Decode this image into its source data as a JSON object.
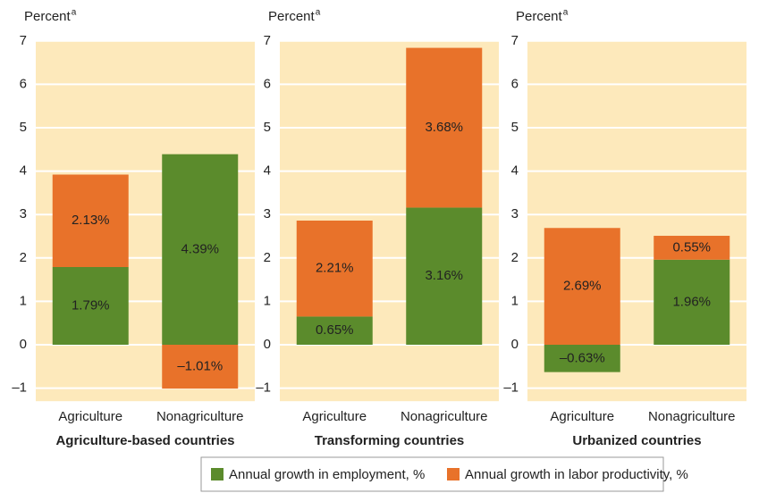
{
  "chart_data": [
    {
      "type": "bar",
      "stacked": true,
      "title": "Agriculture-based countries",
      "y_label": "Percent",
      "y_label_note": "a",
      "categories": [
        "Agriculture",
        "Nonagriculture"
      ],
      "series": [
        {
          "name": "Annual growth in employment, %",
          "color": "#5b8b2c",
          "values": [
            1.79,
            4.39
          ],
          "value_labels": [
            "1.79%",
            "4.39%"
          ]
        },
        {
          "name": "Annual growth in labor productivity, %",
          "color": "#e8722a",
          "values": [
            2.13,
            -1.01
          ],
          "value_labels": [
            "2.13%",
            "–1.01%"
          ]
        }
      ],
      "ylim": [
        -1.3,
        7
      ],
      "yticks": [
        {
          "value": -1,
          "label": "–1"
        },
        0,
        1,
        2,
        3,
        4,
        5,
        6,
        7
      ],
      "grid": true,
      "background": "#fde9bb",
      "legend": "bottom"
    },
    {
      "type": "bar",
      "stacked": true,
      "title": "Transforming countries",
      "y_label": "Percent",
      "y_label_note": "a",
      "categories": [
        "Agriculture",
        "Nonagriculture"
      ],
      "series": [
        {
          "name": "Annual growth in employment, %",
          "color": "#5b8b2c",
          "values": [
            0.65,
            3.16
          ],
          "value_labels": [
            "0.65%",
            "3.16%"
          ]
        },
        {
          "name": "Annual growth in labor productivity, %",
          "color": "#e8722a",
          "values": [
            2.21,
            3.68
          ],
          "value_labels": [
            "2.21%",
            "3.68%"
          ]
        }
      ],
      "ylim": [
        -1.3,
        7
      ],
      "yticks": [
        {
          "value": -1,
          "label": "–1"
        },
        0,
        1,
        2,
        3,
        4,
        5,
        6,
        7
      ],
      "grid": true,
      "background": "#fde9bb",
      "legend": "bottom"
    },
    {
      "type": "bar",
      "stacked": true,
      "title": "Urbanized countries",
      "y_label": "Percent",
      "y_label_note": "a",
      "categories": [
        "Agriculture",
        "Nonagriculture"
      ],
      "series": [
        {
          "name": "Annual growth in employment, %",
          "color": "#5b8b2c",
          "values": [
            -0.63,
            1.96
          ],
          "value_labels": [
            "–0.63%",
            "1.96%"
          ]
        },
        {
          "name": "Annual growth in labor productivity, %",
          "color": "#e8722a",
          "values": [
            2.69,
            0.55
          ],
          "value_labels": [
            "2.69%",
            "0.55%"
          ]
        }
      ],
      "ylim": [
        -1.3,
        7
      ],
      "yticks": [
        {
          "value": -1,
          "label": "–1"
        },
        0,
        1,
        2,
        3,
        4,
        5,
        6,
        7
      ],
      "grid": true,
      "background": "#fde9bb",
      "legend": "bottom"
    }
  ]
}
